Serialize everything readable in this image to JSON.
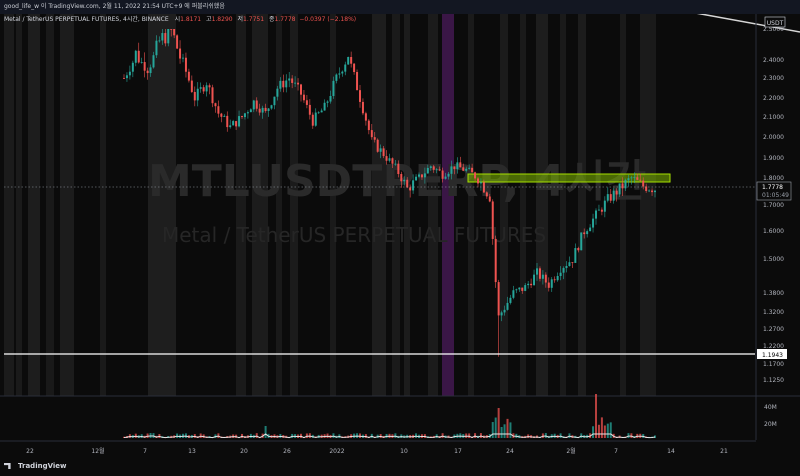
{
  "header": {
    "byline": "good_life_w 이 TradingView.com, 2월 11, 2022 21:54 UTC+9 에 퍼블리쉬했음"
  },
  "legend": {
    "symbol": "Metal / TetherUS PERPETUAL FUTURES, 4시간, BINANCE",
    "o_label": "시",
    "o_value": "1.8171",
    "h_label": "고",
    "h_value": "1.8290",
    "l_label": "저",
    "l_value": "1.7751",
    "c_label": "종",
    "c_value": "1.7778",
    "change": "−0.0397 (−2.18%)"
  },
  "watermark": {
    "ticker": "MTLUSDTPERP, 4시간",
    "name": "Metal / TetherUS PERPETUAL FUTURES"
  },
  "footer": {
    "brand": "TradingView"
  },
  "chart_data": {
    "type": "candlestick",
    "currency_label": "USDT",
    "y_ticks": [
      2.5,
      2.4,
      2.3,
      2.2,
      2.1,
      2.0,
      1.9,
      1.8,
      1.7,
      1.6,
      1.5,
      1.38,
      1.32,
      1.27,
      1.22,
      1.17,
      1.125
    ],
    "y_tick_labels": [
      "2.5000",
      "2.4000",
      "2.3000",
      "2.2000",
      "2.1000",
      "2.0000",
      "1.9000",
      "1.8000",
      "1.7000",
      "1.6000",
      "1.5000",
      "1.3800",
      "1.3200",
      "1.2700",
      "1.2200",
      "1.1700",
      "1.1250"
    ],
    "x_labels": [
      "22",
      "12월",
      "7",
      "13",
      "20",
      "26",
      "2022",
      "10",
      "17",
      "24",
      "2월",
      "7",
      "14",
      "21"
    ],
    "current_price": {
      "value": 1.7778,
      "label": "1.7778",
      "countdown": "01:05:49"
    },
    "support_line": {
      "value": 1.1943,
      "label": "1.1943"
    },
    "resistance_zone": {
      "low": 1.78,
      "high": 1.83
    },
    "volume_ticks": [
      "40M",
      "20M"
    ],
    "price_anchors": [
      [
        0,
        2.3
      ],
      [
        4,
        2.42
      ],
      [
        8,
        2.35
      ],
      [
        12,
        2.46
      ],
      [
        16,
        2.5
      ],
      [
        20,
        2.38
      ],
      [
        24,
        2.2
      ],
      [
        28,
        2.28
      ],
      [
        32,
        2.12
      ],
      [
        36,
        2.05
      ],
      [
        40,
        2.1
      ],
      [
        44,
        2.18
      ],
      [
        48,
        2.12
      ],
      [
        52,
        2.25
      ],
      [
        56,
        2.3
      ],
      [
        60,
        2.22
      ],
      [
        64,
        2.08
      ],
      [
        68,
        2.15
      ],
      [
        72,
        2.3
      ],
      [
        76,
        2.42
      ],
      [
        80,
        2.2
      ],
      [
        84,
        1.98
      ],
      [
        88,
        1.92
      ],
      [
        92,
        1.85
      ],
      [
        96,
        1.76
      ],
      [
        100,
        1.8
      ],
      [
        104,
        1.86
      ],
      [
        108,
        1.82
      ],
      [
        112,
        1.86
      ],
      [
        116,
        1.84
      ],
      [
        120,
        1.8
      ],
      [
        124,
        1.73
      ],
      [
        126,
        1.42
      ],
      [
        128,
        1.32
      ],
      [
        132,
        1.38
      ],
      [
        136,
        1.4
      ],
      [
        140,
        1.45
      ],
      [
        144,
        1.41
      ],
      [
        148,
        1.47
      ],
      [
        152,
        1.5
      ],
      [
        156,
        1.6
      ],
      [
        160,
        1.66
      ],
      [
        164,
        1.72
      ],
      [
        168,
        1.76
      ],
      [
        172,
        1.8
      ],
      [
        176,
        1.77
      ],
      [
        180,
        1.76
      ]
    ]
  }
}
